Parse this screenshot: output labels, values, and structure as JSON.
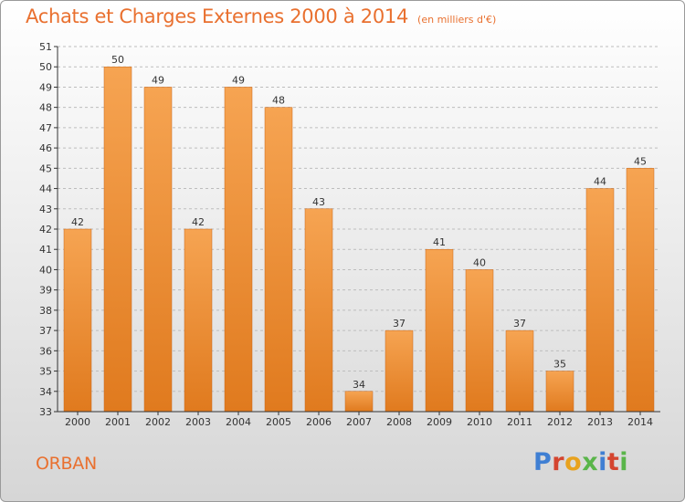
{
  "header": {
    "title": "Achats et Charges Externes 2000 à 2014",
    "unit": "(en milliers d'€)"
  },
  "footer": {
    "commune": "ORBAN",
    "logo_letters": [
      "P",
      "r",
      "o",
      "x",
      "i",
      "t",
      "i"
    ],
    "logo_colors": [
      "#3f7fd3",
      "#d4452f",
      "#e8a21e",
      "#5ab54a",
      "#3f7fd3",
      "#d4452f",
      "#5ab54a"
    ]
  },
  "colors": {
    "title": "#e9702f",
    "bar_top": "#f6a452",
    "bar_bottom": "#e07a1e",
    "bar_stroke": "#c8661a",
    "axis": "#333333",
    "grid": "#bdbdbd"
  },
  "chart_data": {
    "type": "bar",
    "title": "Achats et Charges Externes 2000 à 2014",
    "subtitle": "(en milliers d'€)",
    "categories": [
      "2000",
      "2001",
      "2002",
      "2003",
      "2004",
      "2005",
      "2006",
      "2007",
      "2008",
      "2009",
      "2010",
      "2011",
      "2012",
      "2013",
      "2014"
    ],
    "values": [
      42,
      50,
      49,
      42,
      49,
      48,
      43,
      34,
      37,
      41,
      40,
      37,
      35,
      44,
      45
    ],
    "ylim": [
      33,
      51
    ],
    "yticks": [
      33,
      34,
      35,
      36,
      37,
      38,
      39,
      40,
      41,
      42,
      43,
      44,
      45,
      46,
      47,
      48,
      49,
      50,
      51
    ],
    "grid": true,
    "data_labels": true
  }
}
